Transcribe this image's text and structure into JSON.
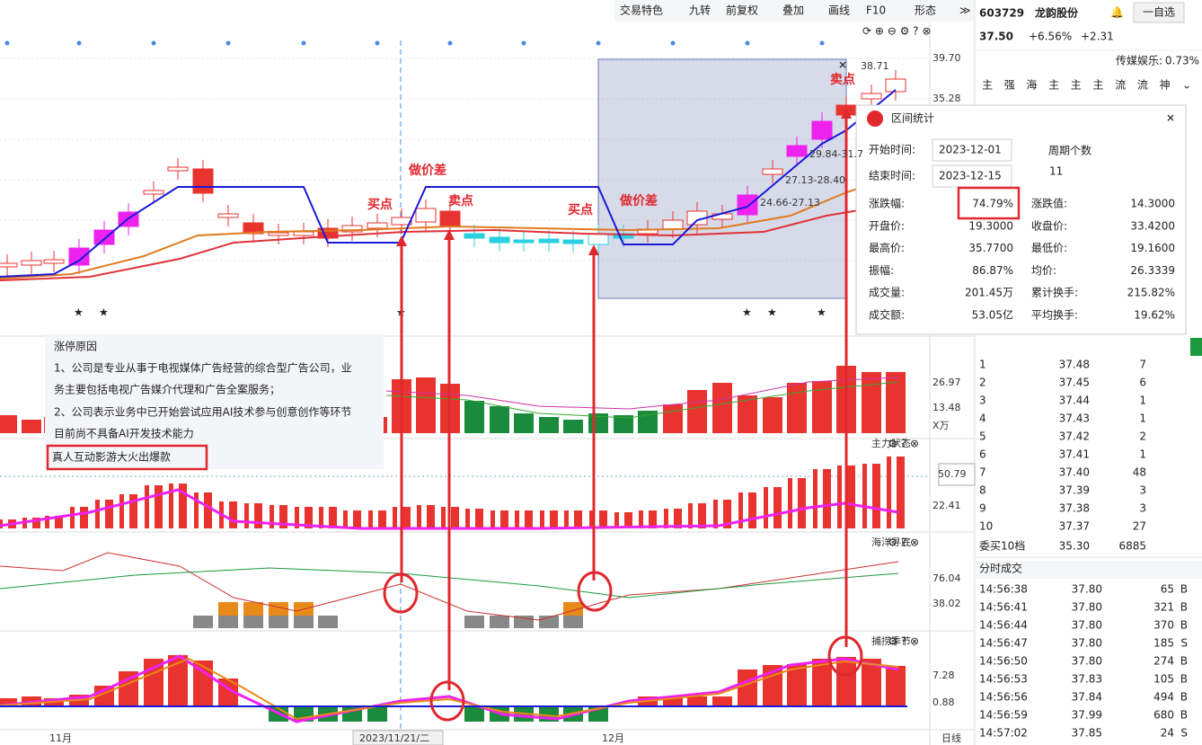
{
  "toolbar": [
    "交易特色",
    "九转",
    "前复权",
    "叠加",
    "画线",
    "F10",
    "形态"
  ],
  "stock": {
    "code": "603729",
    "name": "龙韵股份",
    "watch": "一自选",
    "price": "37.50",
    "change_pct": "+6.56%",
    "change": "+2.31",
    "sector": "传媒娱乐:",
    "sector_pct": "0.73%"
  },
  "tags": [
    "主",
    "强",
    "海",
    "主",
    "主",
    "主",
    "流",
    "流",
    "神"
  ],
  "price_axis": [
    "39.70",
    "35.28"
  ],
  "annotations": {
    "signals": [
      "买点",
      "做价差",
      "卖点",
      "买点",
      "做价差",
      "卖点"
    ],
    "levels": [
      "38.71",
      "29.84-31.7",
      "27.13-28.40",
      "24.66-27.13"
    ]
  },
  "reason": {
    "title": "涨停原因",
    "lines": [
      "1、公司是专业从事于电视媒体广告经营的综合型广告公司，业",
      "务主要包括电视广告媒介代理和广告全案服务；",
      "2、公司表示业务中已开始尝试应用AI技术参与创意创作等环节",
      "目前尚不具备AI开发技术能力"
    ],
    "highlight": "真人互动影游大火出爆款"
  },
  "stats": {
    "title": "区间统计",
    "start_label": "开始时间:",
    "start": "2023-12-01",
    "end_label": "结束时间:",
    "end": "2023-12-15",
    "period_label": "周期个数",
    "period": "11",
    "rows": [
      [
        "涨跌幅:",
        "74.79%",
        "涨跌值:",
        "14.3000"
      ],
      [
        "开盘价:",
        "19.3000",
        "收盘价:",
        "33.4200"
      ],
      [
        "最高价:",
        "35.7700",
        "最低价:",
        "19.1600"
      ],
      [
        "振幅:",
        "86.87%",
        "均价:",
        "26.3339"
      ],
      [
        "成交量:",
        "201.45万",
        "累计换手:",
        "215.82%"
      ],
      [
        "成交额:",
        "53.05亿",
        "平均换手:",
        "19.62%"
      ]
    ]
  },
  "volume_axis": [
    "26.97",
    "13.48",
    "X万"
  ],
  "panels": [
    {
      "title": "主力状态",
      "ticks": [
        "50.79",
        "22.41"
      ]
    },
    {
      "title": "海洋寻底",
      "ticks": [
        "76.04",
        "38.02"
      ]
    },
    {
      "title": "捕捞季节",
      "ticks": [
        "7.28",
        "0.88"
      ]
    }
  ],
  "x_axis": [
    "11月",
    "2023/11/21/二",
    "12月",
    "日线"
  ],
  "order_book": {
    "rows": [
      [
        "1",
        "37.48",
        "7"
      ],
      [
        "2",
        "37.45",
        "6"
      ],
      [
        "3",
        "37.44",
        "1"
      ],
      [
        "4",
        "37.43",
        "1"
      ],
      [
        "5",
        "37.42",
        "2"
      ],
      [
        "6",
        "37.41",
        "1"
      ],
      [
        "7",
        "37.40",
        "48"
      ],
      [
        "8",
        "37.39",
        "3"
      ],
      [
        "9",
        "37.38",
        "3"
      ],
      [
        "10",
        "37.37",
        "27"
      ]
    ],
    "footer": [
      "委买10档",
      "35.30",
      "6885"
    ]
  },
  "trades": {
    "title": "分时成交",
    "rows": [
      {
        "time": "14:56:38",
        "price": "37.80",
        "volume": "65",
        "side": "B",
        "color": "#e0282e"
      },
      {
        "time": "14:56:41",
        "price": "37.80",
        "volume": "321",
        "side": "B",
        "color": "#e0282e"
      },
      {
        "time": "14:56:44",
        "price": "37.80",
        "volume": "370",
        "side": "B",
        "color": "#e0282e"
      },
      {
        "time": "14:56:47",
        "price": "37.80",
        "volume": "185",
        "side": "S",
        "color": "#1a9a3c"
      },
      {
        "time": "14:56:50",
        "price": "37.80",
        "volume": "274",
        "side": "B",
        "color": "#e0282e"
      },
      {
        "time": "14:56:53",
        "price": "37.83",
        "volume": "105",
        "side": "B",
        "color": "#e0282e"
      },
      {
        "time": "14:56:56",
        "price": "37.84",
        "volume": "494",
        "side": "B",
        "color": "#a020c0"
      },
      {
        "time": "14:56:59",
        "price": "37.99",
        "volume": "680",
        "side": "B",
        "color": "#a020c0"
      },
      {
        "time": "14:57:02",
        "price": "37.85",
        "volume": "24",
        "side": "S",
        "color": "#1a9a3c"
      }
    ]
  }
}
